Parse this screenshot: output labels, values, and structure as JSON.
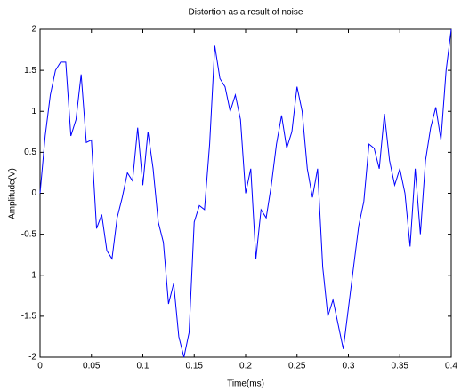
{
  "chart_data": {
    "type": "line",
    "title": "Distortion as a result of noise",
    "xlabel": "Time(ms)",
    "ylabel": "Amplitude(V)",
    "x": [
      0,
      0.005,
      0.01,
      0.015,
      0.02,
      0.025,
      0.03,
      0.035,
      0.04,
      0.045,
      0.05,
      0.055,
      0.06,
      0.065,
      0.07,
      0.075,
      0.08,
      0.085,
      0.09,
      0.095,
      0.1,
      0.105,
      0.11,
      0.115,
      0.12,
      0.125,
      0.13,
      0.135,
      0.14,
      0.145,
      0.15,
      0.155,
      0.16,
      0.165,
      0.17,
      0.175,
      0.18,
      0.185,
      0.19,
      0.195,
      0.2,
      0.205,
      0.21,
      0.215,
      0.22,
      0.225,
      0.23,
      0.235,
      0.24,
      0.245,
      0.25,
      0.255,
      0.26,
      0.265,
      0.27,
      0.275,
      0.28,
      0.285,
      0.29,
      0.295,
      0.3,
      0.305,
      0.31,
      0.315,
      0.32,
      0.325,
      0.33,
      0.335,
      0.34,
      0.345,
      0.35,
      0.355,
      0.36,
      0.365,
      0.37,
      0.375,
      0.38,
      0.385,
      0.39,
      0.395,
      0.4
    ],
    "series": [
      {
        "color": "#0000ff",
        "values": [
          0,
          0.7,
          1.2,
          1.5,
          1.6,
          1.6,
          0.7,
          0.9,
          1.45,
          0.62,
          0.65,
          -0.43,
          -0.26,
          -0.7,
          -0.8,
          -0.3,
          -0.05,
          0.25,
          0.15,
          0.8,
          0.1,
          0.75,
          0.3,
          -0.35,
          -0.6,
          -1.35,
          -1.1,
          -1.75,
          -2.0,
          -1.7,
          -0.35,
          -0.15,
          -0.2,
          0.6,
          1.8,
          1.4,
          1.3,
          1.0,
          1.2,
          0.9,
          0.0,
          0.3,
          -0.8,
          -0.2,
          -0.3,
          0.1,
          0.6,
          0.95,
          0.55,
          0.75,
          1.3,
          1.0,
          0.3,
          -0.05,
          0.3,
          -0.9,
          -1.5,
          -1.3,
          -1.6,
          -1.9,
          -1.4,
          -0.9,
          -0.4,
          -0.1,
          0.6,
          0.55,
          0.3,
          0.97,
          0.4,
          0.1,
          0.3,
          0.0,
          -0.65,
          0.3,
          -0.5,
          0.4,
          0.8,
          1.05,
          0.65,
          1.5,
          2.0
        ]
      }
    ],
    "xlim": [
      0,
      0.4
    ],
    "xticks": [
      0,
      0.05,
      0.1,
      0.15,
      0.2,
      0.25,
      0.3,
      0.35,
      0.4
    ],
    "ylim": [
      -2,
      2
    ],
    "yticks": [
      -2,
      -1.5,
      -1,
      -0.5,
      0,
      0.5,
      1,
      1.5,
      2
    ],
    "grid": false
  }
}
